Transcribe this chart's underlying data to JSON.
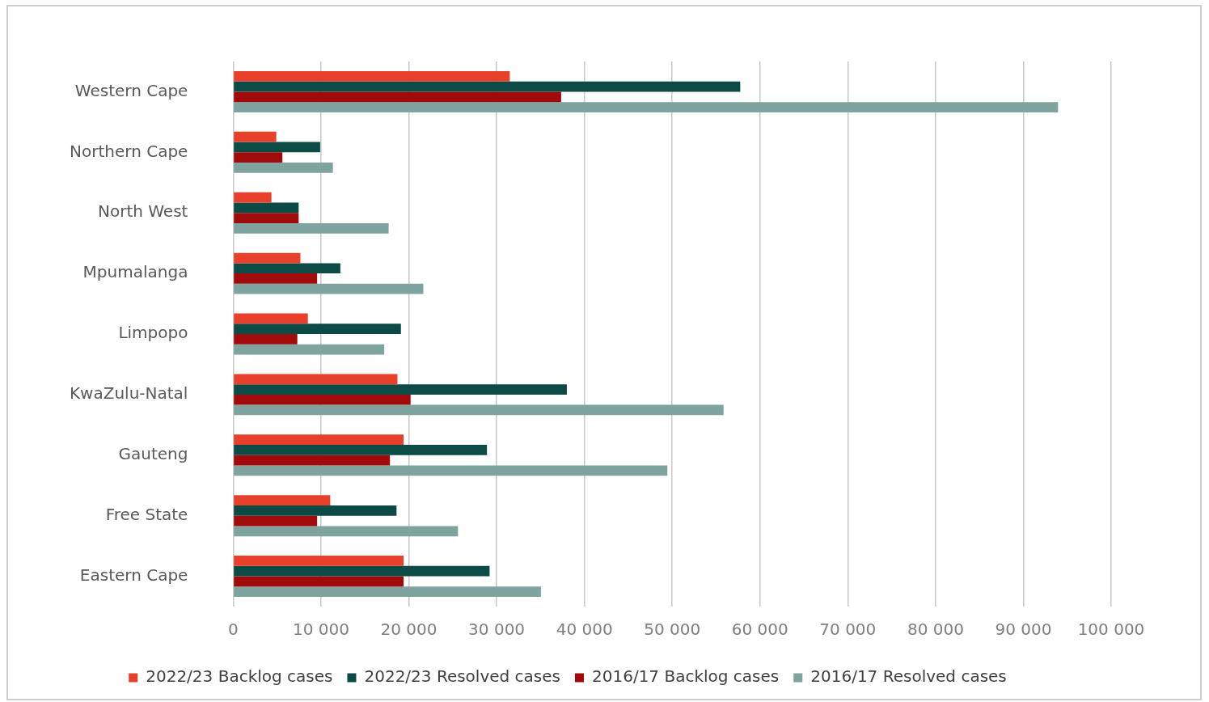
{
  "chart_data": {
    "type": "bar",
    "orientation": "horizontal",
    "categories": [
      "Western Cape",
      "Northern Cape",
      "North West",
      "Mpumalanga",
      "Limpopo",
      "KwaZulu-Natal",
      "Gauteng",
      "Free State",
      "Eastern Cape"
    ],
    "series": [
      {
        "name": "2022/23 Backlog cases",
        "color": "#e8402a",
        "values": [
          31500,
          4900,
          4350,
          7650,
          8500,
          18700,
          19400,
          11050,
          19400
        ]
      },
      {
        "name": "2022/23 Resolved cases",
        "color": "#0b4a45",
        "values": [
          57750,
          9900,
          7450,
          12200,
          19100,
          38000,
          28900,
          18600,
          29200
        ]
      },
      {
        "name": "2016/17 Backlog cases",
        "color": "#a00a0a",
        "values": [
          37350,
          5600,
          7450,
          9550,
          7300,
          20200,
          17850,
          9550,
          19400
        ]
      },
      {
        "name": "2016/17 Resolved cases",
        "color": "#7fa39e",
        "values": [
          93950,
          11350,
          17700,
          21650,
          17200,
          55850,
          49450,
          25600,
          35050
        ]
      }
    ],
    "xlim": [
      0,
      100000
    ],
    "xticks": [
      0,
      {
        "value": 10000,
        "label": "10 000"
      },
      {
        "value": 20000,
        "label": "20 000"
      },
      {
        "value": 30000,
        "label": "30 000"
      },
      {
        "value": 40000,
        "label": "40 000"
      },
      {
        "value": 50000,
        "label": "50 000"
      },
      {
        "value": 60000,
        "label": "60 000"
      },
      {
        "value": 70000,
        "label": "70 000"
      },
      {
        "value": 80000,
        "label": "80 000"
      },
      {
        "value": 90000,
        "label": "90 000"
      },
      {
        "value": 100000,
        "label": "100 000"
      }
    ],
    "grid": "x",
    "legend": "bottom"
  }
}
